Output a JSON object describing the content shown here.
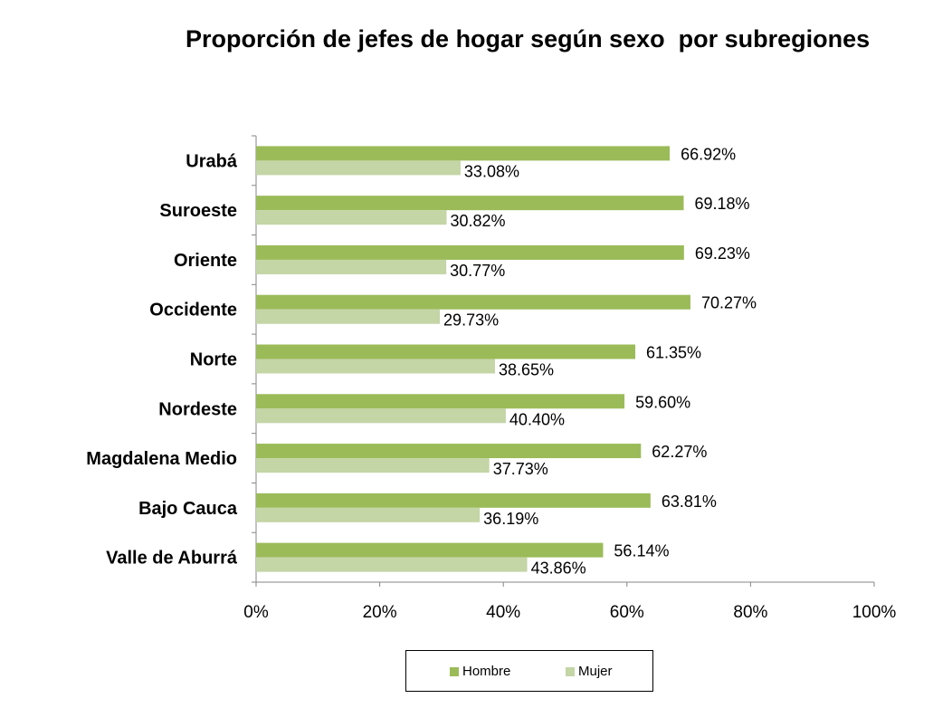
{
  "chart_data": {
    "type": "bar",
    "orientation": "horizontal",
    "title": "Proporción de jefes de hogar según sexo  por subregiones",
    "categories": [
      "Urabá",
      "Suroeste",
      "Oriente",
      "Occidente",
      "Norte",
      "Nordeste",
      "Magdalena Medio",
      "Bajo Cauca",
      "Valle de Aburrá"
    ],
    "series": [
      {
        "name": "Hombre",
        "color": "#9bbb59",
        "values": [
          66.92,
          69.18,
          69.23,
          70.27,
          61.35,
          59.6,
          62.27,
          63.81,
          56.14
        ],
        "labels": [
          "66.92%",
          "69.18%",
          "69.23%",
          "70.27%",
          "61.35%",
          "59.60%",
          "62.27%",
          "63.81%",
          "56.14%"
        ]
      },
      {
        "name": "Mujer",
        "color": "#c4d5a6",
        "values": [
          33.08,
          30.82,
          30.77,
          29.73,
          38.65,
          40.4,
          37.73,
          36.19,
          43.86
        ],
        "labels": [
          "33.08%",
          "30.82%",
          "30.77%",
          "29.73%",
          "38.65%",
          "40.40%",
          "37.73%",
          "36.19%",
          "43.86%"
        ]
      }
    ],
    "xlim": [
      0,
      100
    ],
    "xticks": [
      "0%",
      "20%",
      "40%",
      "60%",
      "80%",
      "100%"
    ],
    "grid": false,
    "legend": "bottom"
  }
}
